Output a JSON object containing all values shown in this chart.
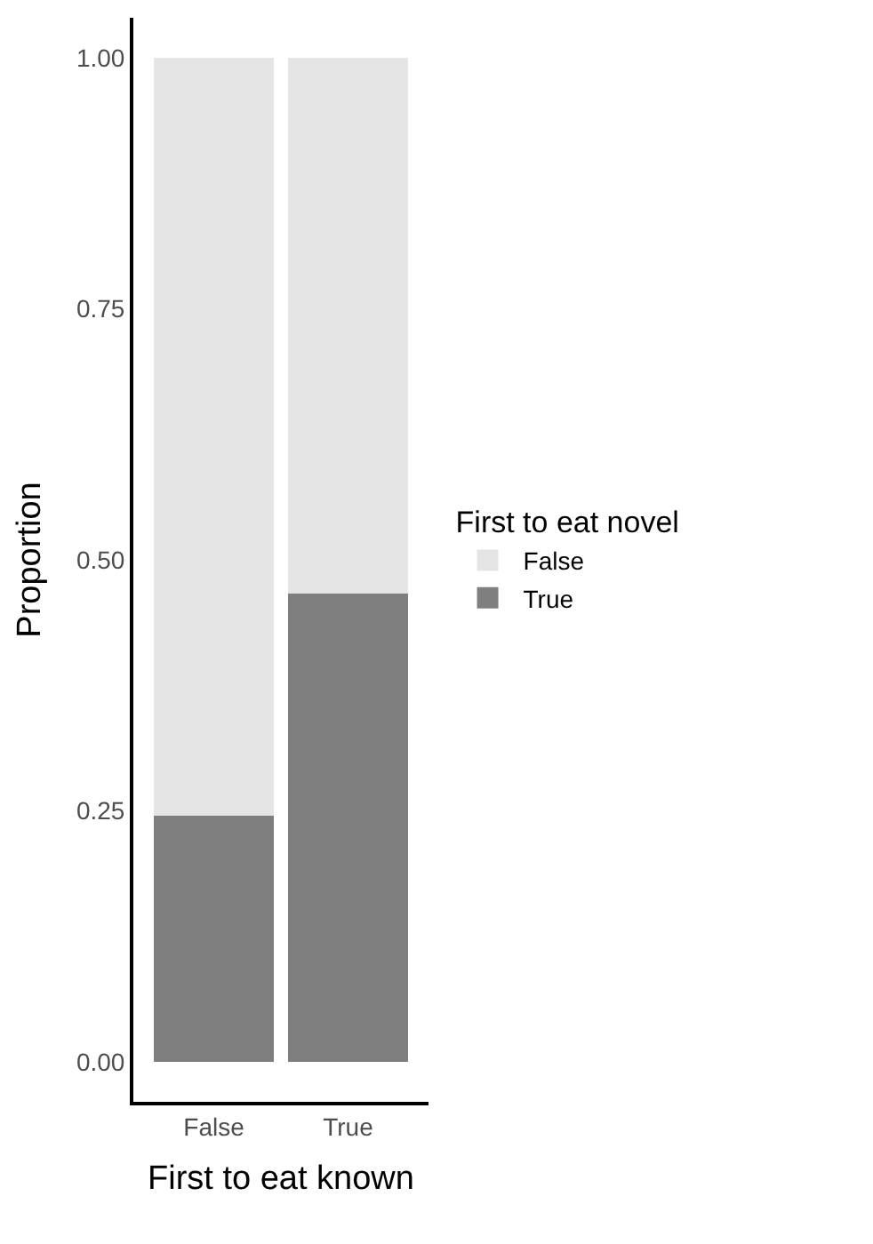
{
  "chart_data": {
    "type": "bar",
    "stacked": true,
    "xlabel": "First to eat known",
    "ylabel": "Proportion",
    "legend_title": "First to eat novel",
    "categories": [
      "False",
      "True"
    ],
    "series": [
      {
        "name": "True",
        "color": "#7f7f7f",
        "values": [
          0.245,
          0.466
        ]
      },
      {
        "name": "False",
        "color": "#e5e5e5",
        "values": [
          0.755,
          0.534
        ]
      }
    ],
    "ylim": [
      -0.04,
      1.04
    ],
    "yticks": [
      {
        "value": 0,
        "label": "0.00"
      },
      {
        "value": 0.25,
        "label": "0.25"
      },
      {
        "value": 0.5,
        "label": "0.50"
      },
      {
        "value": 0.75,
        "label": "0.75"
      },
      {
        "value": 1,
        "label": "1.00"
      }
    ],
    "legend": "right"
  }
}
